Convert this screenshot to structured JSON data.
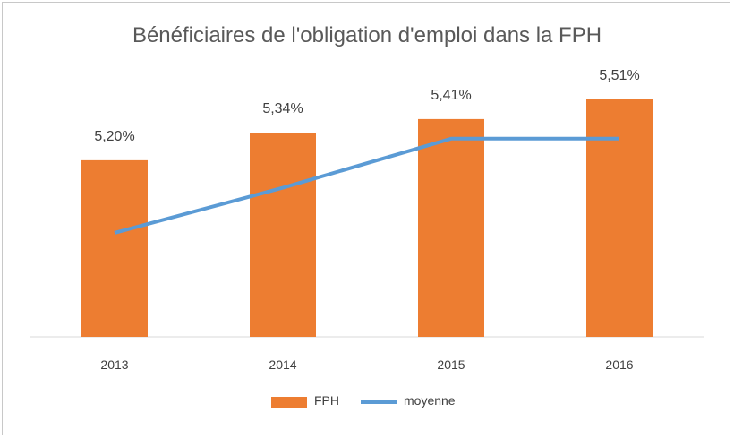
{
  "chart_data": {
    "type": "bar",
    "title": "Bénéficiaires de l'obligation d'emploi dans la FPH",
    "categories": [
      "2013",
      "2014",
      "2015",
      "2016"
    ],
    "series": [
      {
        "name": "FPH",
        "type": "bar",
        "values": [
          5.2,
          5.34,
          5.41,
          5.51
        ],
        "labels": [
          "5,20%",
          "5,34%",
          "5,41%",
          "5,51%"
        ],
        "color": "#ED7D31"
      },
      {
        "name": "moyenne",
        "type": "line",
        "values": [
          4.83,
          5.06,
          5.31,
          5.31
        ],
        "color": "#5B9BD5"
      }
    ],
    "ylim": [
      4.3,
      5.6
    ],
    "grid": false,
    "legend": "bottom"
  }
}
